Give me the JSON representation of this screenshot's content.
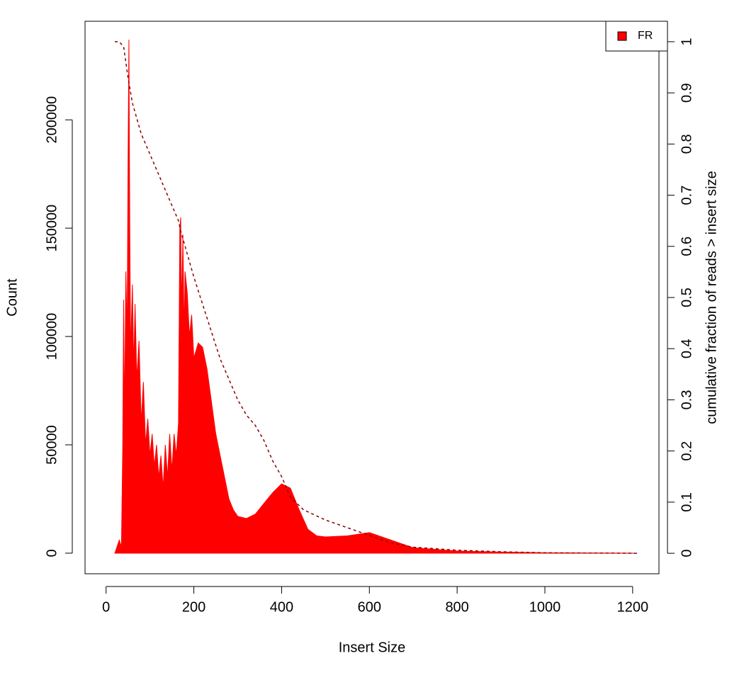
{
  "chart_data": {
    "type": "area",
    "xlabel": "Insert Size",
    "ylabel": "Count",
    "y2label": "cumulative fraction of reads > insert size",
    "xlim": [
      -48,
      1260
    ],
    "xticks": [
      0,
      200,
      400,
      600,
      800,
      1000,
      1200
    ],
    "ylim": [
      -9500,
      245500
    ],
    "yticks": [
      0,
      50000,
      100000,
      150000,
      200000
    ],
    "y2lim": [
      -0.04,
      1.04
    ],
    "y2ticks": [
      0,
      0.1,
      0.2,
      0.3,
      0.4,
      0.5,
      0.6,
      0.7,
      0.8,
      0.9,
      1
    ],
    "legend": "top-right",
    "series": [
      {
        "name": "FR",
        "color": "#ff0000",
        "kind": "area",
        "x": [
          20,
          30,
          35,
          38,
          40,
          42,
          45,
          48,
          50,
          52,
          54,
          56,
          58,
          60,
          63,
          66,
          70,
          75,
          80,
          85,
          90,
          95,
          100,
          105,
          110,
          115,
          120,
          125,
          130,
          135,
          140,
          145,
          150,
          155,
          160,
          165,
          168,
          170,
          172,
          175,
          178,
          180,
          185,
          190,
          195,
          200,
          210,
          220,
          230,
          240,
          250,
          260,
          270,
          280,
          290,
          300,
          320,
          340,
          360,
          380,
          400,
          420,
          440,
          460,
          480,
          500,
          550,
          600,
          650,
          700,
          800,
          900,
          1000,
          1100,
          1210
        ],
        "values": [
          0,
          6000,
          3000,
          50000,
          117000,
          60000,
          130000,
          100000,
          180000,
          237000,
          150000,
          90000,
          110000,
          124000,
          85000,
          115000,
          80000,
          98000,
          60000,
          79000,
          50000,
          62000,
          45000,
          55000,
          40000,
          50000,
          35000,
          45000,
          30000,
          50000,
          35000,
          55000,
          38000,
          55000,
          45000,
          60000,
          150000,
          155000,
          110000,
          147000,
          100000,
          130000,
          120000,
          100000,
          110000,
          90000,
          97000,
          95000,
          85000,
          70000,
          55000,
          45000,
          35000,
          25000,
          20000,
          17000,
          16000,
          18000,
          23000,
          28000,
          32000,
          30000,
          20000,
          11000,
          8000,
          7500,
          8000,
          9500,
          6000,
          2500,
          1000,
          500,
          200,
          100,
          0
        ]
      },
      {
        "color": "#8b0000",
        "kind": "dashed-line",
        "axis": "y2",
        "x": [
          20,
          30,
          40,
          50,
          60,
          80,
          100,
          130,
          165,
          170,
          200,
          230,
          260,
          300,
          320,
          340,
          360,
          380,
          400,
          420,
          450,
          500,
          550,
          600,
          650,
          700,
          800,
          900,
          1000,
          1210
        ],
        "values": [
          1,
          1,
          0.99,
          0.93,
          0.88,
          0.82,
          0.78,
          0.72,
          0.65,
          0.63,
          0.54,
          0.46,
          0.38,
          0.3,
          0.27,
          0.25,
          0.22,
          0.18,
          0.15,
          0.11,
          0.085,
          0.065,
          0.05,
          0.035,
          0.02,
          0.012,
          0.006,
          0.003,
          0.001,
          0
        ]
      }
    ]
  }
}
